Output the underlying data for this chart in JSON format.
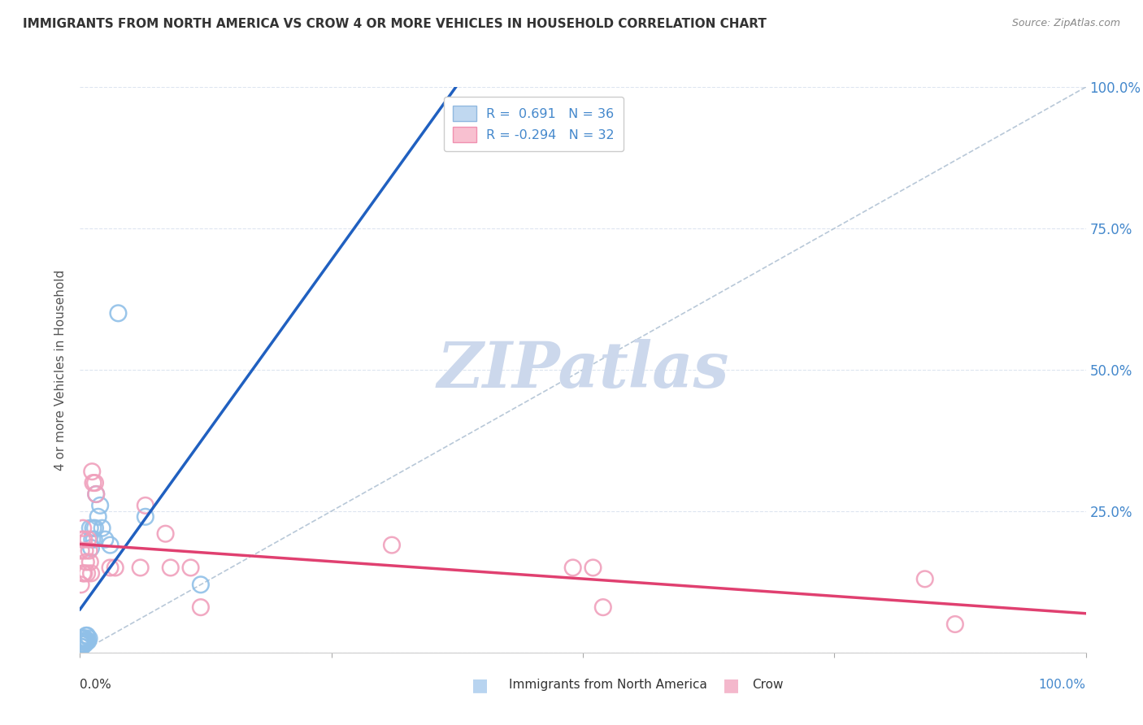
{
  "title": "IMMIGRANTS FROM NORTH AMERICA VS CROW 4 OR MORE VEHICLES IN HOUSEHOLD CORRELATION CHART",
  "source": "Source: ZipAtlas.com",
  "ylabel": "4 or more Vehicles in Household",
  "ytick_vals": [
    0,
    0.25,
    0.5,
    0.75,
    1.0
  ],
  "ytick_labels": [
    "",
    "25.0%",
    "50.0%",
    "75.0%",
    "100.0%"
  ],
  "legend_line1": "R =  0.691   N = 36",
  "legend_line2": "R = -0.294   N = 32",
  "blue_scatter_x": [
    0.001,
    0.001,
    0.001,
    0.002,
    0.002,
    0.002,
    0.002,
    0.003,
    0.003,
    0.003,
    0.004,
    0.004,
    0.005,
    0.005,
    0.005,
    0.006,
    0.006,
    0.007,
    0.007,
    0.008,
    0.009,
    0.01,
    0.011,
    0.012,
    0.013,
    0.014,
    0.015,
    0.016,
    0.018,
    0.02,
    0.022,
    0.025,
    0.03,
    0.038,
    0.065,
    0.12
  ],
  "blue_scatter_y": [
    0.02,
    0.015,
    0.01,
    0.02,
    0.015,
    0.025,
    0.01,
    0.02,
    0.015,
    0.025,
    0.02,
    0.025,
    0.015,
    0.02,
    0.025,
    0.02,
    0.03,
    0.02,
    0.03,
    0.02,
    0.025,
    0.22,
    0.185,
    0.2,
    0.22,
    0.2,
    0.22,
    0.28,
    0.24,
    0.26,
    0.22,
    0.2,
    0.19,
    0.6,
    0.24,
    0.12
  ],
  "pink_scatter_x": [
    0.001,
    0.001,
    0.002,
    0.003,
    0.003,
    0.004,
    0.004,
    0.005,
    0.006,
    0.007,
    0.008,
    0.009,
    0.01,
    0.011,
    0.012,
    0.013,
    0.015,
    0.016,
    0.03,
    0.035,
    0.06,
    0.065,
    0.085,
    0.09,
    0.11,
    0.12,
    0.31,
    0.49,
    0.51,
    0.52,
    0.84,
    0.87
  ],
  "pink_scatter_y": [
    0.18,
    0.12,
    0.2,
    0.14,
    0.22,
    0.14,
    0.2,
    0.18,
    0.16,
    0.14,
    0.2,
    0.18,
    0.16,
    0.14,
    0.32,
    0.3,
    0.3,
    0.28,
    0.15,
    0.15,
    0.15,
    0.26,
    0.21,
    0.15,
    0.15,
    0.08,
    0.19,
    0.15,
    0.15,
    0.08,
    0.13,
    0.05
  ],
  "blue_color": "#90c0e8",
  "pink_color": "#f0a0bc",
  "blue_line_color": "#2060c0",
  "pink_line_color": "#e04070",
  "diagonal_color": "#b8c8d8",
  "background_color": "#ffffff",
  "grid_color": "#dde5f0",
  "watermark": "ZIPatlas",
  "watermark_color": "#ccd8ec",
  "title_color": "#333333",
  "source_color": "#888888",
  "axis_label_color": "#555555",
  "right_tick_color": "#4488cc"
}
